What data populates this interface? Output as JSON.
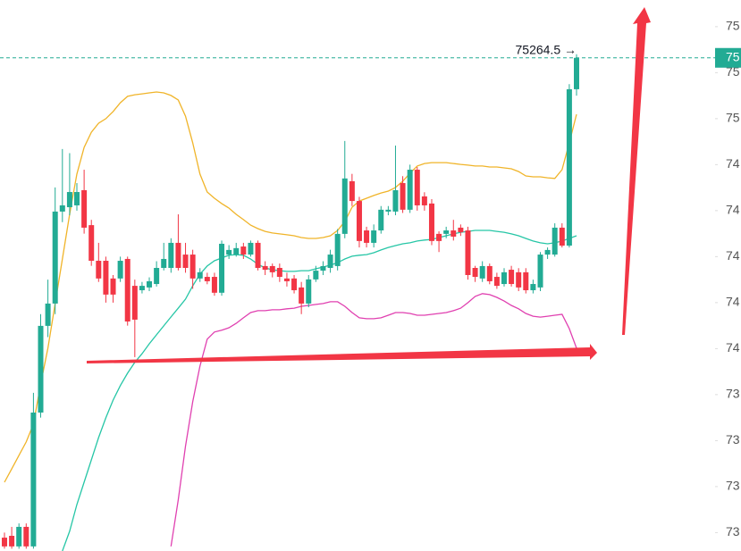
{
  "chart_data": {
    "type": "candlestick",
    "up_color": "#22ab94",
    "down_color": "#f23645",
    "ylim": [
      73120,
      75516
    ],
    "yticks": [
      {
        "value": 75400,
        "label": "75"
      },
      {
        "value": 75200,
        "label": "75"
      },
      {
        "value": 75000,
        "label": "75"
      },
      {
        "value": 74800,
        "label": "74"
      },
      {
        "value": 74600,
        "label": "74"
      },
      {
        "value": 74400,
        "label": "74"
      },
      {
        "value": 74200,
        "label": "74"
      },
      {
        "value": 74000,
        "label": "74"
      },
      {
        "value": 73800,
        "label": "73"
      },
      {
        "value": 73600,
        "label": "73"
      },
      {
        "value": 73400,
        "label": "73"
      },
      {
        "value": 73200,
        "label": "73"
      }
    ],
    "last_price": 75264.5,
    "last_price_label": "75264.5 →",
    "price_axis_label": "75",
    "open": [
      73178,
      73186,
      73140,
      73225,
      73140,
      73722,
      74099,
      74196,
      74596,
      74615,
      74623,
      74689,
      74537,
      74382,
      74382,
      74305,
      74305,
      74390,
      74273,
      74254,
      74266,
      74281,
      74351,
      74351,
      74460,
      74409,
      74409,
      74305,
      74312,
      74312,
      74243,
      74409,
      74409,
      74444,
      74409,
      74460,
      74359,
      74359,
      74351,
      74305,
      74305,
      74266,
      74196,
      74301,
      74339,
      74351,
      74359,
      74499,
      74728,
      74642,
      74514,
      74460,
      74514,
      74596,
      74596,
      74720,
      74604,
      74778,
      74662,
      74631,
      74499,
      74499,
      74514,
      74526,
      74514,
      74351,
      74305,
      74359,
      74312,
      74281,
      74343,
      74332,
      74332,
      74254,
      74266,
      74409,
      74409,
      74526,
      74448,
      75128
    ],
    "high": [
      73200,
      73225,
      73240,
      73240,
      73808,
      74150,
      74300,
      74701,
      74868,
      74850,
      74720,
      74778,
      74560,
      74460,
      74400,
      74320,
      74400,
      74400,
      74300,
      74290,
      74310,
      74380,
      74460,
      74480,
      74584,
      74460,
      74430,
      74350,
      74330,
      74330,
      74470,
      74450,
      74460,
      74460,
      74470,
      74470,
      74380,
      74370,
      74370,
      74330,
      74320,
      74290,
      74320,
      74360,
      74380,
      74430,
      74520,
      74903,
      74760,
      74660,
      74530,
      74540,
      74620,
      74620,
      74883,
      74750,
      74800,
      74790,
      74680,
      74650,
      74510,
      74530,
      74560,
      74540,
      74530,
      74360,
      74380,
      74370,
      74330,
      74350,
      74360,
      74350,
      74350,
      74300,
      74420,
      74440,
      74545,
      74545,
      75150,
      75280
    ],
    "low": [
      73130,
      73130,
      73130,
      73130,
      73130,
      73700,
      74050,
      74150,
      74550,
      74580,
      74600,
      74500,
      74360,
      74290,
      74200,
      74200,
      74290,
      74100,
      73963,
      74240,
      74250,
      74270,
      74340,
      74330,
      74340,
      74330,
      74260,
      74290,
      74280,
      74230,
      74230,
      74390,
      74400,
      74390,
      74400,
      74340,
      74320,
      74310,
      74290,
      74270,
      74240,
      74150,
      74180,
      74290,
      74320,
      74330,
      74340,
      74480,
      74620,
      74440,
      74440,
      74440,
      74500,
      74580,
      74580,
      74590,
      74590,
      74600,
      74600,
      74450,
      74420,
      74480,
      74470,
      74490,
      74300,
      74290,
      74290,
      74280,
      74260,
      74270,
      74270,
      74250,
      74240,
      74240,
      74250,
      74390,
      74400,
      74440,
      74440,
      75100
    ],
    "close": [
      73140,
      73140,
      73225,
      73140,
      73722,
      74099,
      74196,
      74596,
      74623,
      74681,
      74681,
      74526,
      74382,
      74305,
      74235,
      74235,
      74382,
      74118,
      74126,
      74273,
      74293,
      74351,
      74390,
      74460,
      74351,
      74351,
      74305,
      74332,
      74293,
      74243,
      74456,
      74429,
      74437,
      74409,
      74460,
      74351,
      74343,
      74332,
      74312,
      74293,
      74254,
      74196,
      74301,
      74339,
      74359,
      74409,
      74499,
      74740,
      74642,
      74468,
      74460,
      74514,
      74604,
      74604,
      74689,
      74604,
      74778,
      74623,
      74623,
      74468,
      74468,
      74514,
      74487,
      74506,
      74320,
      74312,
      74359,
      74293,
      74273,
      74332,
      74281,
      74266,
      74254,
      74281,
      74409,
      74429,
      74526,
      74448,
      75128,
      75264.5
    ],
    "lines": [
      {
        "color": "#f0b429",
        "values": [
          73419,
          73477,
          73536,
          73594,
          73672,
          73846,
          74002,
          74196,
          74390,
          74584,
          74759,
          74875,
          74941,
          74980,
          75000,
          75031,
          75069,
          75097,
          75104,
          75108,
          75112,
          75116,
          75112,
          75101,
          75081,
          75011,
          74895,
          74759,
          74681,
          74654,
          74631,
          74611,
          74584,
          74561,
          74537,
          74522,
          74510,
          74503,
          74499,
          74495,
          74491,
          74483,
          74479,
          74479,
          74483,
          74491,
          74514,
          74553,
          74615,
          74642,
          74654,
          74666,
          74677,
          74685,
          74701,
          74728,
          74763,
          74794,
          74805,
          74809,
          74809,
          74809,
          74805,
          74801,
          74798,
          74794,
          74794,
          74790,
          74790,
          74786,
          74782,
          74770,
          74751,
          74747,
          74747,
          74743,
          74740,
          74778,
          74895,
          75019
        ]
      },
      {
        "color": "#26c6a6",
        "values": [
          null,
          null,
          null,
          null,
          null,
          null,
          null,
          null,
          73120,
          73206,
          73322,
          73419,
          73516,
          73613,
          73699,
          73776,
          73839,
          73893,
          73940,
          73978,
          74021,
          74060,
          74099,
          74138,
          74176,
          74215,
          74273,
          74324,
          74359,
          74382,
          74394,
          74406,
          74409,
          74406,
          74390,
          74367,
          74351,
          74343,
          74339,
          74336,
          74336,
          74339,
          74339,
          74347,
          74355,
          74363,
          74374,
          74390,
          74402,
          74406,
          74409,
          74417,
          74429,
          74440,
          74448,
          74456,
          74460,
          74468,
          74472,
          74475,
          74483,
          74491,
          74499,
          74506,
          74510,
          74514,
          74514,
          74514,
          74510,
          74506,
          74499,
          74491,
          74479,
          74468,
          74460,
          74456,
          74460,
          74468,
          74479,
          74491
        ]
      },
      {
        "color": "#e040b0",
        "values": [
          null,
          null,
          null,
          null,
          null,
          null,
          null,
          null,
          null,
          null,
          null,
          null,
          null,
          null,
          null,
          null,
          null,
          null,
          null,
          null,
          null,
          null,
          null,
          73140,
          73342,
          73575,
          73769,
          73924,
          74041,
          74072,
          74080,
          74091,
          74110,
          74134,
          74157,
          74165,
          74165,
          74169,
          74169,
          74173,
          74176,
          74184,
          74188,
          74192,
          74196,
          74204,
          74204,
          74184,
          74157,
          74134,
          74130,
          74130,
          74134,
          74145,
          74157,
          74157,
          74153,
          74145,
          74145,
          74149,
          74153,
          74157,
          74165,
          74176,
          74200,
          74227,
          74239,
          74235,
          74223,
          74207,
          74188,
          74173,
          74153,
          74141,
          74137,
          74141,
          74145,
          74149,
          74087,
          74002
        ]
      }
    ]
  }
}
